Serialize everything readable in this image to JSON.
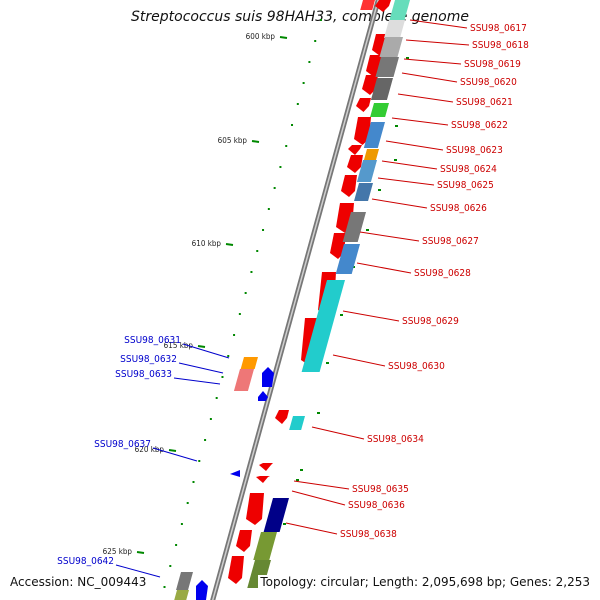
{
  "title": "Streptococcus suis 98HAH33, complete genome",
  "footer": {
    "accession": "Accession: NC_009443",
    "topology": "Topology: circular; Length: 2,095,698 bp; Genes: 2,253"
  },
  "ruler": [
    {
      "label": "600 kbp"
    },
    {
      "label": "605 kbp"
    },
    {
      "label": "610 kbp"
    },
    {
      "label": "615 kbp"
    },
    {
      "label": "620 kbp"
    },
    {
      "label": "625 kbp"
    }
  ],
  "genes_right": [
    "SSU98_0617",
    "SSU98_0618",
    "SSU98_0619",
    "SSU98_0620",
    "SSU98_0621",
    "SSU98_0622",
    "SSU98_0623",
    "SSU98_0624",
    "SSU98_0625",
    "SSU98_0626",
    "SSU98_0627",
    "SSU98_0628",
    "SSU98_0629",
    "SSU98_0630",
    "SSU98_0634",
    "SSU98_0635",
    "SSU98_0636",
    "SSU98_0638"
  ],
  "genes_left": [
    "SSU98_0631",
    "SSU98_0632",
    "SSU98_0633",
    "SSU98_0637",
    "SSU98_0642"
  ],
  "colors": {
    "forward_label": "#cc0000",
    "reverse_label": "#0000cc",
    "forward_gene": "#ee0000",
    "reverse_gene": "#0000ee",
    "backbone": "#888888",
    "tick": "#008800"
  }
}
